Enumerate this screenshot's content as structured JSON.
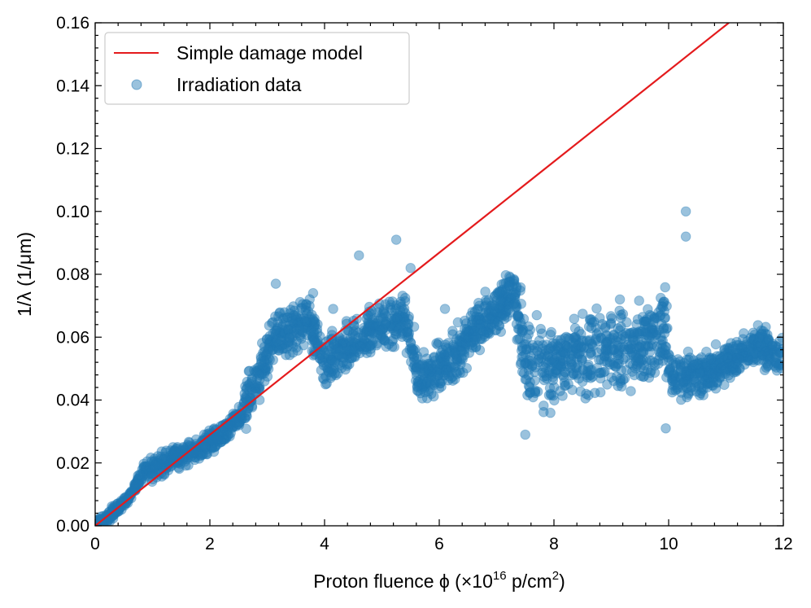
{
  "chart_data": {
    "type": "scatter",
    "title": "",
    "xlabel": "Proton fluence ϕ (×10",
    "xlabel_exponent": "16",
    "xlabel_units": "p/cm",
    "xlabel_units_exponent": "2",
    "xlabel_close": ")",
    "ylabel": "1/λ (1/μm)",
    "xlim": [
      0,
      12
    ],
    "ylim": [
      0,
      0.16
    ],
    "x_ticks": [
      0,
      2,
      4,
      6,
      8,
      10,
      12
    ],
    "x_tick_labels": [
      "0",
      "2",
      "4",
      "6",
      "8",
      "10",
      "12"
    ],
    "y_ticks": [
      0,
      0.02,
      0.04,
      0.06,
      0.08,
      0.1,
      0.12,
      0.14,
      0.16
    ],
    "y_tick_labels": [
      "0.00",
      "0.02",
      "0.04",
      "0.06",
      "0.08",
      "0.10",
      "0.12",
      "0.14",
      "0.16"
    ],
    "legend_position": "top-left",
    "colors": {
      "line": "#e41a1c",
      "scatter": "#1f77b4"
    },
    "series": [
      {
        "name": "Simple damage model",
        "kind": "line",
        "x": [
          0,
          11.05
        ],
        "y": [
          0,
          0.16
        ]
      },
      {
        "name": "Irradiation data",
        "kind": "scatter",
        "profile": [
          [
            0.0,
            0.0
          ],
          [
            0.3,
            0.004
          ],
          [
            0.6,
            0.009
          ],
          [
            0.8,
            0.016
          ],
          [
            1.0,
            0.018
          ],
          [
            1.4,
            0.022
          ],
          [
            1.8,
            0.024
          ],
          [
            2.2,
            0.029
          ],
          [
            2.5,
            0.034
          ],
          [
            2.7,
            0.042
          ],
          [
            2.9,
            0.05
          ],
          [
            3.1,
            0.058
          ],
          [
            3.3,
            0.061
          ],
          [
            3.5,
            0.063
          ],
          [
            3.7,
            0.066
          ],
          [
            3.85,
            0.06
          ],
          [
            4.0,
            0.05
          ],
          [
            4.2,
            0.054
          ],
          [
            4.5,
            0.058
          ],
          [
            4.8,
            0.062
          ],
          [
            5.1,
            0.064
          ],
          [
            5.4,
            0.066
          ],
          [
            5.55,
            0.055
          ],
          [
            5.65,
            0.046
          ],
          [
            5.9,
            0.048
          ],
          [
            6.2,
            0.052
          ],
          [
            6.5,
            0.06
          ],
          [
            6.8,
            0.066
          ],
          [
            7.1,
            0.07
          ],
          [
            7.3,
            0.075
          ],
          [
            7.45,
            0.058
          ],
          [
            7.6,
            0.048
          ],
          [
            8.0,
            0.052
          ],
          [
            8.5,
            0.054
          ],
          [
            9.0,
            0.056
          ],
          [
            9.5,
            0.058
          ],
          [
            9.95,
            0.062
          ],
          [
            10.05,
            0.048
          ],
          [
            10.6,
            0.048
          ],
          [
            11.0,
            0.052
          ],
          [
            11.5,
            0.057
          ],
          [
            12.0,
            0.054
          ]
        ],
        "outliers": [
          [
            3.15,
            0.077
          ],
          [
            4.6,
            0.086
          ],
          [
            5.25,
            0.091
          ],
          [
            10.3,
            0.1
          ],
          [
            10.3,
            0.092
          ],
          [
            4.15,
            0.069
          ],
          [
            5.5,
            0.082
          ],
          [
            6.1,
            0.069
          ],
          [
            7.7,
            0.067
          ],
          [
            7.5,
            0.029
          ],
          [
            9.15,
            0.072
          ],
          [
            9.95,
            0.031
          ],
          [
            3.8,
            0.074
          ],
          [
            6.6,
            0.062
          ],
          [
            5.95,
            0.058
          ]
        ]
      }
    ]
  }
}
